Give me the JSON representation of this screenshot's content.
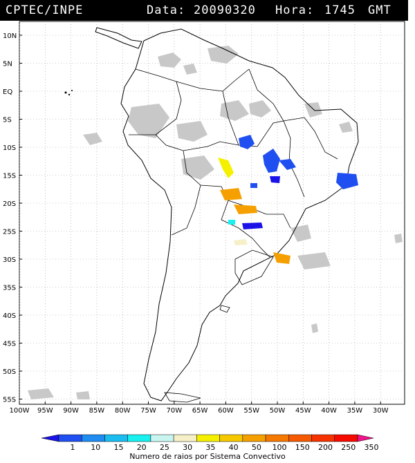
{
  "header": {
    "agency": "CPTEC/INPE",
    "date_label": "Data:",
    "date_value": "20090320",
    "time_label": "Hora:",
    "time_value": "1745",
    "timezone": "GMT"
  },
  "map": {
    "lat_labels": [
      "10N",
      "5N",
      "EQ",
      "5S",
      "10S",
      "15S",
      "20S",
      "25S",
      "30S",
      "35S",
      "40S",
      "45S",
      "50S",
      "55S"
    ],
    "lon_labels": [
      "100W",
      "95W",
      "90W",
      "85W",
      "80W",
      "75W",
      "70W",
      "65W",
      "60W",
      "55W",
      "50W",
      "45W",
      "40W",
      "35W",
      "30W"
    ],
    "cloud_color": "#c8c8c8",
    "coast_color": "#000000"
  },
  "colorbar": {
    "values": [
      "1",
      "10",
      "15",
      "20",
      "25",
      "30",
      "35",
      "40",
      "50",
      "100",
      "150",
      "200",
      "250",
      "350"
    ],
    "colors": [
      "#1a12e6",
      "#1f4ff0",
      "#1e8cf0",
      "#1bbcf0",
      "#19f0f0",
      "#c8f5f0",
      "#f5f0c8",
      "#f5f000",
      "#f5c800",
      "#f5a000",
      "#f57800",
      "#f55a00",
      "#f53200",
      "#f50a00",
      "#f0148c"
    ],
    "title": "Numero de raios por Sistema Convectivo"
  }
}
